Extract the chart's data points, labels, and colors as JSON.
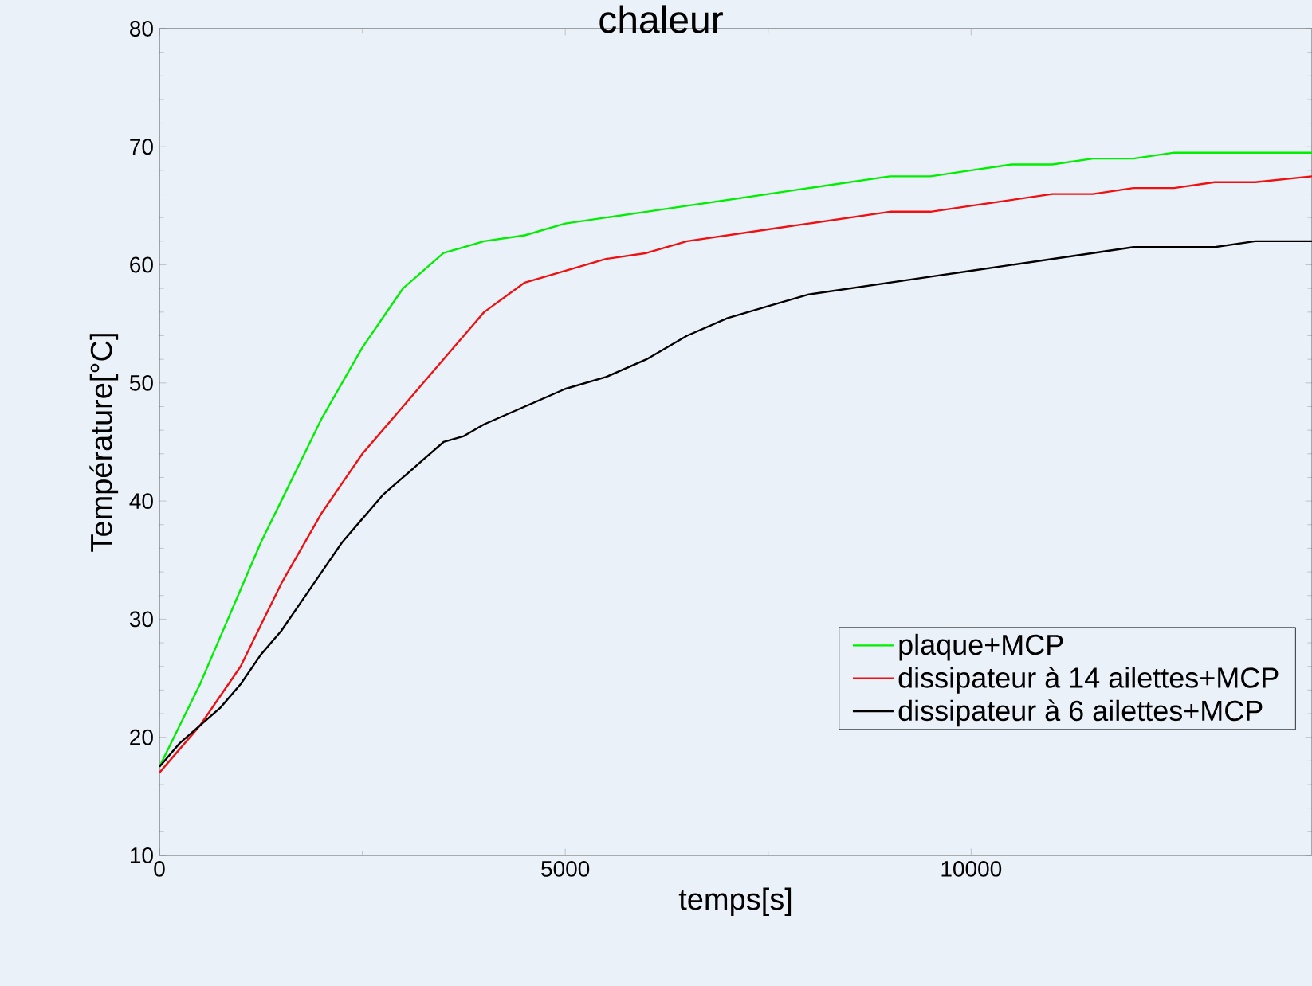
{
  "chart_data": {
    "type": "line",
    "title": "chaleur",
    "xlabel": "temps[s]",
    "ylabel": "Température[°C]",
    "x": [
      0,
      250,
      500,
      750,
      1000,
      1250,
      1500,
      1750,
      2000,
      2250,
      2500,
      2750,
      3000,
      3250,
      3500,
      3750,
      4000,
      4500,
      5000,
      5500,
      6000,
      6500,
      7000,
      7500,
      8000,
      8500,
      9000,
      9500,
      10000,
      10500,
      11000,
      11500,
      12000,
      12500,
      13000,
      13500,
      14200
    ],
    "series": [
      {
        "name": "plaque+MCP",
        "color": "#00ee00",
        "values": [
          17.5,
          21,
          24.5,
          28.5,
          32.5,
          36.5,
          40,
          43.5,
          47,
          50,
          53,
          55.5,
          58,
          59.5,
          61,
          61.5,
          62,
          62.5,
          63.5,
          64,
          64.5,
          65,
          65.5,
          66,
          66.5,
          67,
          67.5,
          67.5,
          68,
          68.5,
          68.5,
          69,
          69,
          69.5,
          69.5,
          69.5,
          69.5
        ]
      },
      {
        "name": "dissipateur à 14 ailettes+MCP",
        "color": "#ee1111",
        "values": [
          17,
          19,
          21,
          23.5,
          26,
          29.5,
          33,
          36,
          39,
          41.5,
          44,
          46,
          48,
          50,
          52,
          54,
          56,
          58.5,
          59.5,
          60.5,
          61,
          62,
          62.5,
          63,
          63.5,
          64,
          64.5,
          64.5,
          65,
          65.5,
          66,
          66,
          66.5,
          66.5,
          67,
          67,
          67.5
        ]
      },
      {
        "name": "dissipateur à 6 ailettes+MCP",
        "color": "#000000",
        "values": [
          17.5,
          19.5,
          21,
          22.5,
          24.5,
          27,
          29,
          31.5,
          34,
          36.5,
          38.5,
          40.5,
          42,
          43.5,
          45,
          45.5,
          46.5,
          48,
          49.5,
          50.5,
          52,
          54,
          55.5,
          56.5,
          57.5,
          58,
          58.5,
          59,
          59.5,
          60,
          60.5,
          61,
          61.5,
          61.5,
          61.5,
          62,
          62
        ]
      }
    ],
    "xlim": [
      0,
      14200
    ],
    "ylim": [
      10,
      80
    ],
    "xticks": [
      0,
      5000,
      10000
    ],
    "yticks": [
      10,
      20,
      30,
      40,
      50,
      60,
      70,
      80
    ],
    "legend": "bottom right"
  }
}
